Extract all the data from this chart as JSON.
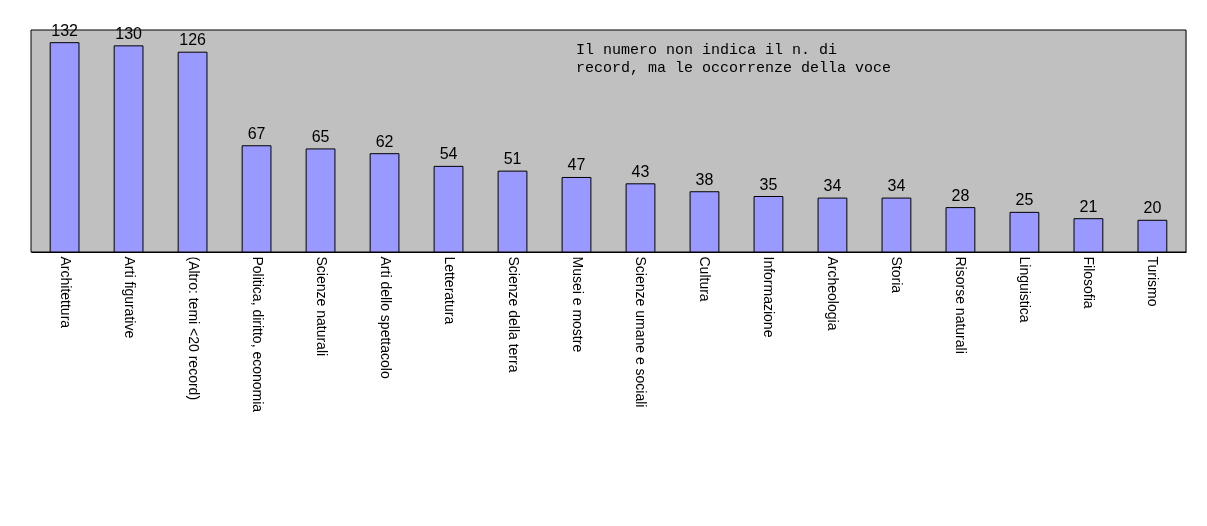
{
  "chart_data": {
    "type": "bar",
    "categories": [
      "Architettura",
      "Arti figurative",
      "(Altro: temi <20 record)",
      "Politica, diritto, economia",
      "Scienze naturali",
      "Arti dello spettacolo",
      "Letteratura",
      "Scienze della terra",
      "Musei e mostre",
      "Scienze umane e sociali",
      "Cultura",
      "Informazione",
      "Archeologia",
      "Storia",
      "Risorse naturali",
      "Linguistica",
      "Filosofia",
      "Turismo"
    ],
    "values": [
      132,
      130,
      126,
      67,
      65,
      62,
      54,
      51,
      47,
      43,
      38,
      35,
      34,
      34,
      28,
      25,
      21,
      20
    ],
    "color": "#9999ff",
    "data_labels": true,
    "annotations": [
      "Il numero non indica il n. di",
      "record, ma le occorrenze della voce"
    ],
    "tick_labels": "x"
  }
}
